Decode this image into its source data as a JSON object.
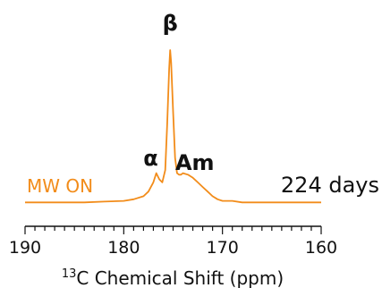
{
  "chart_data": {
    "type": "line",
    "xlabel_sup": "13",
    "xlabel": "C Chemical Shift (ppm)",
    "xlim": [
      190,
      160
    ],
    "x_reversed": true,
    "xticks": [
      190,
      180,
      170,
      160
    ],
    "y_axis_shown": false,
    "series": [
      {
        "name": "MW ON",
        "color": "#f28c1a",
        "x": [
          190,
          188,
          186,
          184,
          182,
          180,
          179,
          178,
          177.5,
          177,
          176.7,
          176.4,
          176.1,
          175.8,
          175.6,
          175.4,
          175.3,
          175.2,
          175.0,
          174.8,
          174.6,
          174.4,
          174.2,
          174.0,
          173.5,
          173.0,
          172.5,
          172.0,
          171.5,
          171.0,
          170.5,
          170.0,
          169.0,
          168.0,
          166.0,
          164.0,
          162.0,
          160.0
        ],
        "y": [
          0.01,
          0.01,
          0.01,
          0.01,
          0.015,
          0.02,
          0.03,
          0.05,
          0.08,
          0.14,
          0.2,
          0.16,
          0.14,
          0.22,
          0.52,
          0.88,
          1.0,
          0.92,
          0.6,
          0.3,
          0.2,
          0.19,
          0.19,
          0.2,
          0.19,
          0.17,
          0.14,
          0.11,
          0.08,
          0.05,
          0.03,
          0.02,
          0.02,
          0.01,
          0.01,
          0.01,
          0.01,
          0.01
        ]
      }
    ],
    "annotations": [
      {
        "text": "β",
        "x": 175.3
      },
      {
        "text": "α",
        "x": 176.9
      },
      {
        "text": "Am",
        "x": 172.8
      }
    ],
    "series_label": "MW ON",
    "time_label": "224 days"
  },
  "colors": {
    "series": "#f28c1a",
    "axis": "#111111",
    "text": "#111111"
  }
}
